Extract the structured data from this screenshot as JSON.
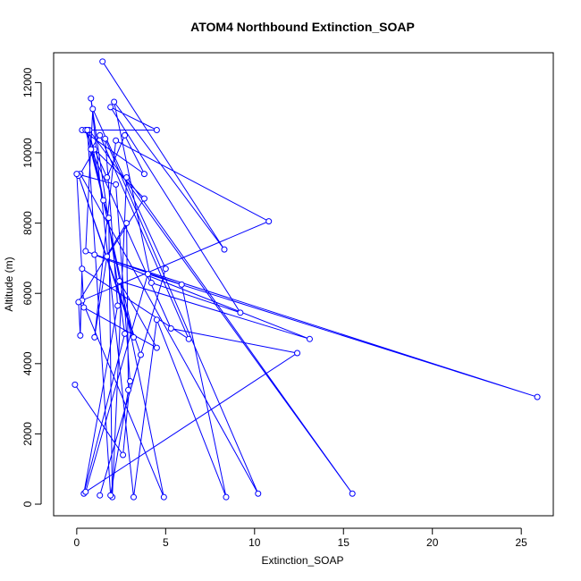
{
  "chart_data": {
    "type": "scatter",
    "title": "ATOM4 Northbound Extinction_SOAP",
    "xlabel": "Extinction_SOAP",
    "ylabel": "Altitude (m)",
    "xlim": [
      -1.3,
      26.8
    ],
    "ylim": [
      -330,
      12850
    ],
    "xticks": [
      0,
      5,
      10,
      15,
      20,
      25
    ],
    "yticks": [
      0,
      2000,
      4000,
      6000,
      8000,
      10000,
      12000
    ],
    "grid": false,
    "legend": "none",
    "series_color": "#0000ff",
    "marker": "open-circle",
    "connected": true,
    "x": [
      1.45,
      8.3,
      2.1,
      4.2,
      9.2,
      1.9,
      4.5,
      0.3,
      3.8,
      2.7,
      1.7,
      0.5,
      1.5,
      1.8,
      2.0,
      2.8,
      15.5,
      0.7,
      4.9,
      0.3,
      10.8,
      2.2,
      1.0,
      1.7,
      3.8,
      1.0,
      0.2,
      10.2,
      1.6,
      2.3,
      0.4,
      2.7,
      0.8,
      3.2,
      4.5,
      8.4,
      5.9,
      0.5,
      0.9,
      5.0,
      1.3,
      3.6,
      0.1,
      3.2,
      0.6,
      1.9,
      2.9,
      2.8,
      0.1,
      0.2,
      0.3,
      6.3,
      1.3,
      0.8,
      5.3,
      12.4,
      0.5,
      4.0,
      25.9,
      1.0,
      13.1,
      2.4,
      4.5,
      0.4,
      0.0,
      2.2,
      3.0,
      2.6,
      -0.1
    ],
    "y": [
      12600,
      7250,
      11450,
      6300,
      5450,
      11300,
      10650,
      10650,
      9400,
      10500,
      9300,
      10650,
      8650,
      8150,
      200,
      9300,
      300,
      10650,
      200,
      5800,
      8050,
      10350,
      4750,
      7050,
      8700,
      10100,
      9400,
      300,
      10400,
      5650,
      300,
      4850,
      11550,
      200,
      5250,
      200,
      6250,
      7200,
      11250,
      6700,
      250,
      4250,
      9350,
      4750,
      10650,
      250,
      3250,
      8000,
      5750,
      4800,
      6700,
      4700,
      10500,
      10100,
      5000,
      4300,
      350,
      6550,
      3050,
      7100,
      4700,
      6350,
      4450,
      5600,
      9400,
      9100,
      3500,
      1400,
      3400
    ]
  }
}
